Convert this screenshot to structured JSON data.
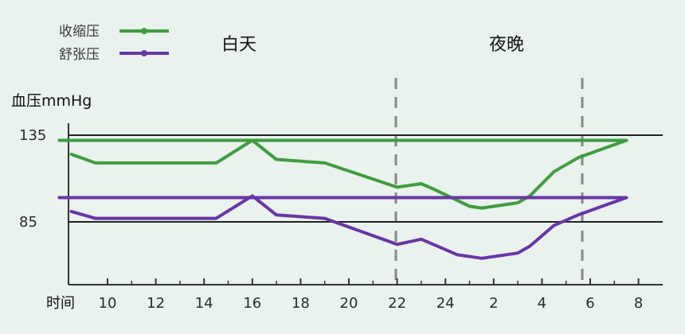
{
  "chart_data": {
    "type": "line",
    "title": "",
    "ylabel": "血压mmHg",
    "xlabel": "时间",
    "x_ticks": [
      "10",
      "12",
      "14",
      "16",
      "18",
      "20",
      "22",
      "24",
      "2",
      "4",
      "6",
      "8"
    ],
    "y_ticks": [
      135,
      85
    ],
    "ylim": [
      50,
      145
    ],
    "reference_lines": [
      135,
      85
    ],
    "periods": [
      {
        "label": "白天",
        "from": "9",
        "to": "22"
      },
      {
        "label": "夜晚",
        "from": "22",
        "to": "6"
      }
    ],
    "series": [
      {
        "name": "收缩压",
        "color": "#3d9e3d",
        "points": [
          [
            "8:30",
            124
          ],
          [
            "9:30",
            119
          ],
          [
            "14:30",
            119
          ],
          [
            "16:00",
            132
          ],
          [
            "17:00",
            121
          ],
          [
            "19:00",
            119
          ],
          [
            "22:00",
            105
          ],
          [
            "23:00",
            107
          ],
          [
            "23:30",
            104
          ],
          [
            "1:00",
            94
          ],
          [
            "1:30",
            93
          ],
          [
            "3:00",
            96
          ],
          [
            "3:30",
            100
          ],
          [
            "4:30",
            114
          ],
          [
            "5:30",
            122
          ],
          [
            "6:30",
            127
          ],
          [
            "7:30",
            132
          ],
          [
            "8:00",
            132
          ]
        ]
      },
      {
        "name": "舒张压",
        "color": "#6a35a8",
        "points": [
          [
            "8:30",
            91
          ],
          [
            "9:30",
            87
          ],
          [
            "14:30",
            87
          ],
          [
            "16:00",
            100
          ],
          [
            "17:00",
            89
          ],
          [
            "19:00",
            87
          ],
          [
            "22:00",
            72
          ],
          [
            "23:00",
            75
          ],
          [
            "23:30",
            72
          ],
          [
            "0:30",
            66
          ],
          [
            "1:30",
            64
          ],
          [
            "3:00",
            67
          ],
          [
            "3:30",
            71
          ],
          [
            "4:30",
            83
          ],
          [
            "5:30",
            89
          ],
          [
            "6:30",
            94
          ],
          [
            "7:30",
            99
          ],
          [
            "8:00",
            99
          ]
        ]
      }
    ]
  }
}
